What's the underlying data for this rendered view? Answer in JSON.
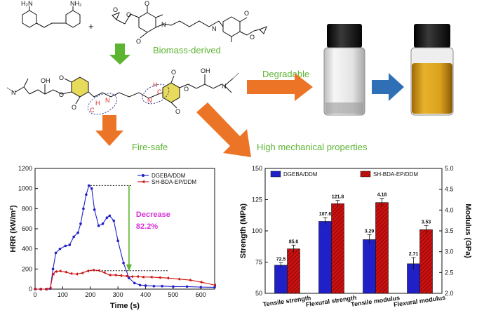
{
  "scheme": {
    "reactant_labels": [
      "H₂N",
      "NH₂",
      "O",
      "O",
      "O",
      "O",
      "O",
      "O",
      "N",
      "N"
    ],
    "product_labels": [
      "N",
      "OH",
      "O",
      "O",
      "O",
      "H",
      "C",
      "N",
      "N",
      "C",
      "H",
      "O",
      "O",
      "O",
      "OH",
      "N"
    ],
    "plus": "+",
    "biomass": "Biomass-derived",
    "degradable": "Degradable",
    "fire_safe": "Fire-safe",
    "high_mech": "High mechanical properties"
  },
  "colors": {
    "green": "#5cb531",
    "orange": "#ec7427",
    "blue_arrow": "#2f6fb6",
    "vial_clear": "#f2f2f2",
    "vial_yellow": "#d9a11e",
    "cap": "#1b1b1b",
    "dgeba": "#2020c8",
    "shbda": "#cc1111",
    "ring_fill": "#e8da5a",
    "pink": "#d633d6"
  },
  "chart_data": [
    {
      "type": "line",
      "xlabel": "Time (s)",
      "ylabel": "HRR (kW/m²)",
      "xlim": [
        0,
        650
      ],
      "ylim": [
        0,
        1200
      ],
      "xticks": [
        "0",
        "100",
        "200",
        "300",
        "400",
        "500",
        "600"
      ],
      "yticks": [
        "0",
        "200",
        "400",
        "600",
        "800",
        "1000",
        "1200"
      ],
      "legend_position": "top-right",
      "series": [
        {
          "name": "DGEBA/DDM",
          "color": "#2020c8",
          "marker": "circle",
          "x": [
            0,
            20,
            40,
            55,
            65,
            75,
            90,
            110,
            125,
            140,
            155,
            165,
            175,
            185,
            195,
            205,
            215,
            230,
            245,
            260,
            270,
            285,
            300,
            320,
            340,
            360,
            380,
            400,
            430,
            460,
            500,
            550,
            600,
            650
          ],
          "y": [
            0,
            0,
            0,
            5,
            200,
            360,
            400,
            430,
            440,
            520,
            560,
            650,
            800,
            940,
            1030,
            1000,
            790,
            630,
            650,
            710,
            730,
            680,
            480,
            260,
            110,
            60,
            40,
            35,
            30,
            30,
            25,
            25,
            20,
            18
          ]
        },
        {
          "name": "SH-BDA-EP/DDM",
          "color": "#cc1111",
          "marker": "triangle-left",
          "x": [
            0,
            20,
            40,
            55,
            65,
            75,
            90,
            110,
            130,
            150,
            170,
            190,
            210,
            230,
            250,
            270,
            290,
            310,
            330,
            350,
            370,
            390,
            420,
            450,
            480,
            520,
            560,
            600,
            650
          ],
          "y": [
            0,
            0,
            0,
            10,
            150,
            175,
            180,
            170,
            155,
            150,
            160,
            180,
            190,
            185,
            165,
            140,
            140,
            135,
            130,
            125,
            125,
            120,
            120,
            115,
            110,
            100,
            90,
            70,
            40
          ]
        }
      ],
      "annotations": [
        {
          "text": "Decrease",
          "color": "#d633d6"
        },
        {
          "text": "82.2%",
          "color": "#d633d6"
        }
      ],
      "reference_lines": {
        "upper": 1030,
        "lower": 183
      }
    },
    {
      "type": "bar",
      "categories": [
        "Tensile strength",
        "Flexural strength",
        "Tensile modulus",
        "Flexural modulus"
      ],
      "ylabel": "Strength (MPa)",
      "y2label": "Modulus (GPa)",
      "ylim": [
        50,
        150
      ],
      "y2lim": [
        2.0,
        5.0
      ],
      "yticks": [
        "50",
        "75",
        "100",
        "125",
        "150"
      ],
      "y2ticks": [
        "2.0",
        "2.5",
        "3.0",
        "3.5",
        "4.0",
        "4.5",
        "5.0"
      ],
      "legend_position": "top",
      "series": [
        {
          "name": "DGEBA/DDM",
          "color": "#2020c8",
          "pattern": "solid",
          "values": [
            72.5,
            107.6,
            3.29,
            2.71
          ],
          "labels": [
            "72.5",
            "107.6",
            "3.29",
            "2.71"
          ],
          "errors": [
            2,
            3,
            0.12,
            0.15
          ]
        },
        {
          "name": "SH-BDA-EP/DDM",
          "color": "#cc1111",
          "pattern": "hatched",
          "values": [
            85.6,
            121.8,
            4.18,
            3.53
          ],
          "labels": [
            "85.6",
            "121.8",
            "4.18",
            "3.53"
          ],
          "errors": [
            3,
            2.5,
            0.1,
            0.1
          ]
        }
      ],
      "axis_for_category": [
        "left",
        "left",
        "right",
        "right"
      ]
    }
  ]
}
